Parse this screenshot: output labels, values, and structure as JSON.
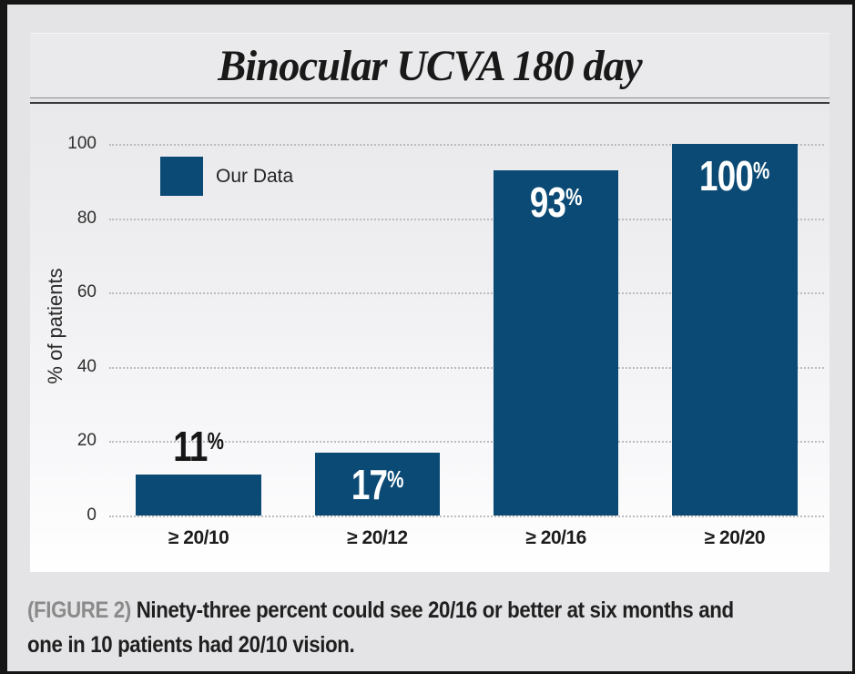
{
  "title": "Binocular UCVA 180 day",
  "legend": {
    "label": "Our Data"
  },
  "caption": {
    "label": "(FIGURE 2)",
    "line1": "Ninety-three percent could see 20/16 or better at six months and",
    "line2": "one in 10 patients had 20/10 vision."
  },
  "colors": {
    "bar": "#0a4a74",
    "caption_label": "#8a8a8a",
    "gridline": "#bcbcbe"
  },
  "chart_data": {
    "type": "bar",
    "title": "Binocular UCVA 180 day",
    "categories": [
      "≥ 20/10",
      "≥ 20/12",
      "≥ 20/16",
      "≥ 20/20"
    ],
    "values": [
      11,
      17,
      93,
      100
    ],
    "value_labels": [
      "11%",
      "17%",
      "93%",
      "100%"
    ],
    "value_label_placement": [
      "above",
      "inside",
      "inside",
      "inside"
    ],
    "series_name": "Our Data",
    "xlabel": "",
    "ylabel": "% of patients",
    "ylim": [
      0,
      100
    ],
    "yticks": [
      0,
      20,
      40,
      60,
      80,
      100
    ],
    "grid": "horizontal-dotted",
    "legend_position": "top-left-inside",
    "bar_color": "#0a4a74"
  }
}
